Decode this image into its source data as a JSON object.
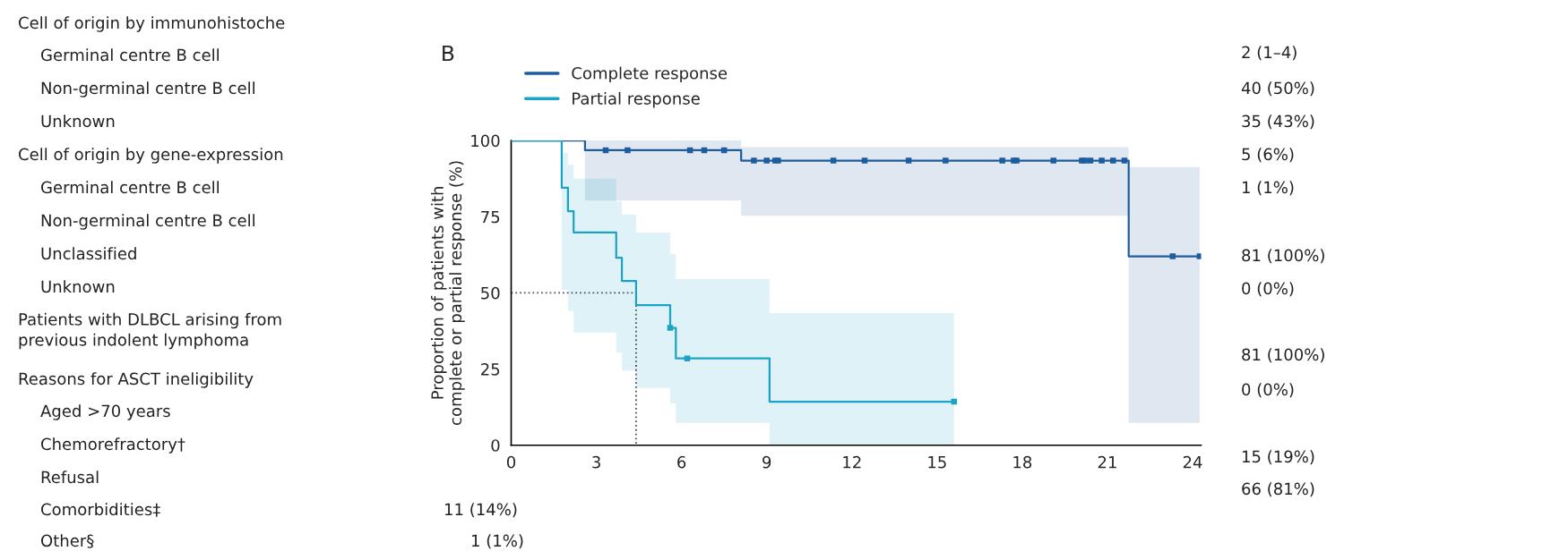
{
  "chart_data": {
    "type": "step",
    "title": "B",
    "ylabel": "Proportion of patients with\ncomplete or partial response (%)",
    "xlim": [
      0,
      24.3
    ],
    "xticks": [
      0,
      3,
      6,
      9,
      12,
      15,
      18,
      21,
      24
    ],
    "ylim": [
      0,
      100
    ],
    "yticks": [
      0,
      25,
      50,
      75,
      100
    ],
    "grid": false,
    "legend": "top left",
    "series": [
      {
        "name": "Complete response",
        "color": "#1f5c9e",
        "x": [
          0,
          2.6,
          8.1,
          21.75,
          24.25
        ],
        "values": [
          100,
          96.8,
          93.4,
          62,
          62
        ],
        "lower": [
          null,
          80.3,
          75.3,
          7.3,
          7.3
        ],
        "upper": [
          null,
          100,
          97.8,
          91.3,
          91.3
        ]
      },
      {
        "name": "Partial response",
        "color": "#1ba3c6",
        "x": [
          0,
          1.78,
          2.0,
          2.2,
          3.7,
          3.9,
          4.4,
          5.6,
          5.8,
          9.1,
          15.6
        ],
        "values": [
          100,
          84.5,
          76.8,
          69.8,
          61.5,
          53.9,
          46,
          38.5,
          28.5,
          14.3,
          14.3
        ],
        "lower": [
          null,
          51,
          44,
          37,
          30.4,
          24.5,
          18.8,
          13.7,
          7.3,
          0,
          0
        ],
        "upper": [
          null,
          96,
          92,
          87.5,
          80,
          75.7,
          69.8,
          62.8,
          54.5,
          43.4,
          43.4
        ]
      },
      {
        "type": "scatter",
        "marker": "square",
        "color": "#1f5c9e",
        "x": [
          3.33,
          4.1,
          6.3,
          6.8,
          7.5,
          8.55,
          9.0,
          9.3,
          9.4,
          11.35,
          12.45,
          14.0,
          15.3,
          17.3,
          17.7,
          17.8,
          19.1,
          20.1,
          20.2,
          20.4,
          20.8,
          21.2,
          21.6,
          23.3,
          24.25
        ],
        "values": [
          96.8,
          96.8,
          96.8,
          96.8,
          96.8,
          93.4,
          93.4,
          93.4,
          93.4,
          93.4,
          93.4,
          93.4,
          93.4,
          93.4,
          93.4,
          93.4,
          93.4,
          93.4,
          93.4,
          93.4,
          93.4,
          93.4,
          93.4,
          62,
          62
        ]
      },
      {
        "type": "scatter",
        "marker": "square",
        "color": "#1ba3c6",
        "x": [
          5.6,
          6.2,
          15.6
        ],
        "values": [
          38.5,
          28.5,
          14.3
        ]
      },
      {
        "type": "line",
        "color": "#555555",
        "line_style": "dotted",
        "x": [
          0,
          4.4,
          4.4
        ],
        "values": [
          50,
          50,
          0
        ]
      }
    ],
    "annotations": [
      "Cell of origin by immunohistoche",
      "Germinal centre B cell",
      "Non-germinal centre B cell",
      "Unknown",
      "Cell of origin by gene-expression",
      "Germinal centre B cell",
      "Non-germinal centre B cell",
      "Unclassified",
      "Unknown",
      "Patients with DLBCL arising from\nprevious indolent lymphoma",
      "Reasons for ASCT ineligibility",
      "Aged >70 years",
      "Chemorefractory†",
      "Refusal",
      "Comorbidities‡",
      "Other§",
      "11 (14%)",
      "1 (1%)",
      "2 (1–4)",
      "40 (50%)",
      "35 (43%)",
      "5 (6%)",
      "1 (1%)",
      "81 (100%)",
      "0 (0%)",
      "81 (100%)",
      "0 (0%)",
      "15 (19%)",
      "66 (81%)"
    ]
  }
}
